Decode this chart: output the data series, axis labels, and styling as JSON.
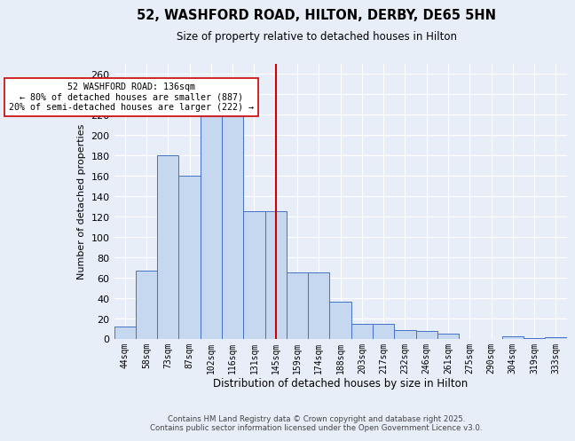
{
  "title1": "52, WASHFORD ROAD, HILTON, DERBY, DE65 5HN",
  "title2": "Size of property relative to detached houses in Hilton",
  "xlabel": "Distribution of detached houses by size in Hilton",
  "ylabel": "Number of detached properties",
  "bin_labels": [
    "44sqm",
    "58sqm",
    "73sqm",
    "87sqm",
    "102sqm",
    "116sqm",
    "131sqm",
    "145sqm",
    "159sqm",
    "174sqm",
    "188sqm",
    "203sqm",
    "217sqm",
    "232sqm",
    "246sqm",
    "261sqm",
    "275sqm",
    "290sqm",
    "304sqm",
    "319sqm",
    "333sqm"
  ],
  "bar_heights": [
    12,
    67,
    180,
    160,
    230,
    230,
    125,
    125,
    65,
    65,
    37,
    15,
    15,
    9,
    8,
    5,
    0,
    0,
    3,
    1,
    2
  ],
  "bar_color": "#c5d8f0",
  "bar_edge_color": "#4472c4",
  "vline_x": 7.0,
  "vline_color": "#cc0000",
  "annotation_text": "52 WASHFORD ROAD: 136sqm\n← 80% of detached houses are smaller (887)\n20% of semi-detached houses are larger (222) →",
  "annotation_box_color": "#ffffff",
  "annotation_box_edge": "#cc0000",
  "ylim": [
    0,
    270
  ],
  "yticks": [
    0,
    20,
    40,
    60,
    80,
    100,
    120,
    140,
    160,
    180,
    200,
    220,
    240,
    260
  ],
  "background_color": "#e8eef8",
  "grid_color": "#ffffff",
  "footer1": "Contains HM Land Registry data © Crown copyright and database right 2025.",
  "footer2": "Contains public sector information licensed under the Open Government Licence v3.0."
}
